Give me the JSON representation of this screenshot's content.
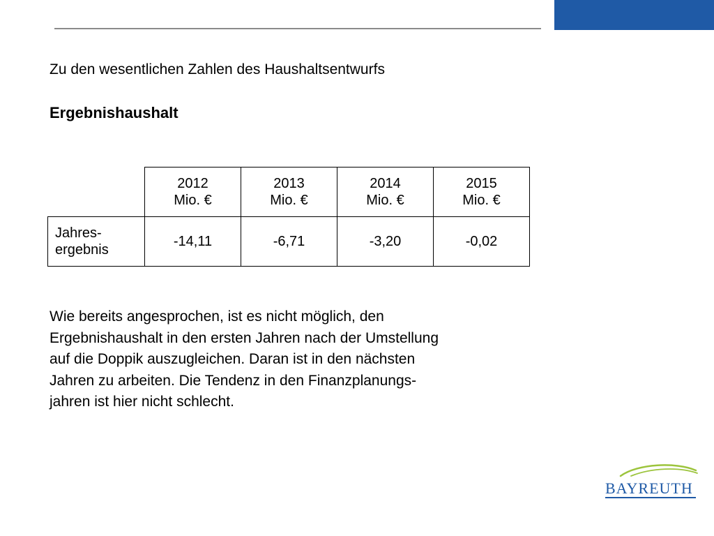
{
  "header": {
    "accent_color": "#1f5aa6",
    "line_color": "#8a8a8a"
  },
  "subtitle": "Zu den wesentlichen Zahlen des Haushaltsentwurfs",
  "heading": "Ergebnishaushalt",
  "table": {
    "columns": [
      {
        "year": "2012",
        "unit": "Mio. €"
      },
      {
        "year": "2013",
        "unit": "Mio. €"
      },
      {
        "year": "2014",
        "unit": "Mio. €"
      },
      {
        "year": "2015",
        "unit": "Mio. €"
      }
    ],
    "row": {
      "label_line1": "Jahres-",
      "label_line2": "ergebnis",
      "values": [
        "-14,11",
        "-6,71",
        "-3,20",
        "-0,02"
      ]
    }
  },
  "paragraph": {
    "lines": [
      "Wie bereits angesprochen, ist es nicht möglich, den",
      "Ergebnishaushalt in den ersten Jahren nach der Umstellung",
      "auf die Doppik auszugleichen. Daran ist in den nächsten",
      "Jahren zu arbeiten. Die Tendenz in den Finanzplanungs-",
      "jahren ist hier nicht schlecht."
    ]
  },
  "logo": {
    "text": "BAYREUTH",
    "text_color": "#1f5aa6",
    "swoosh_color": "#9cc43c"
  }
}
